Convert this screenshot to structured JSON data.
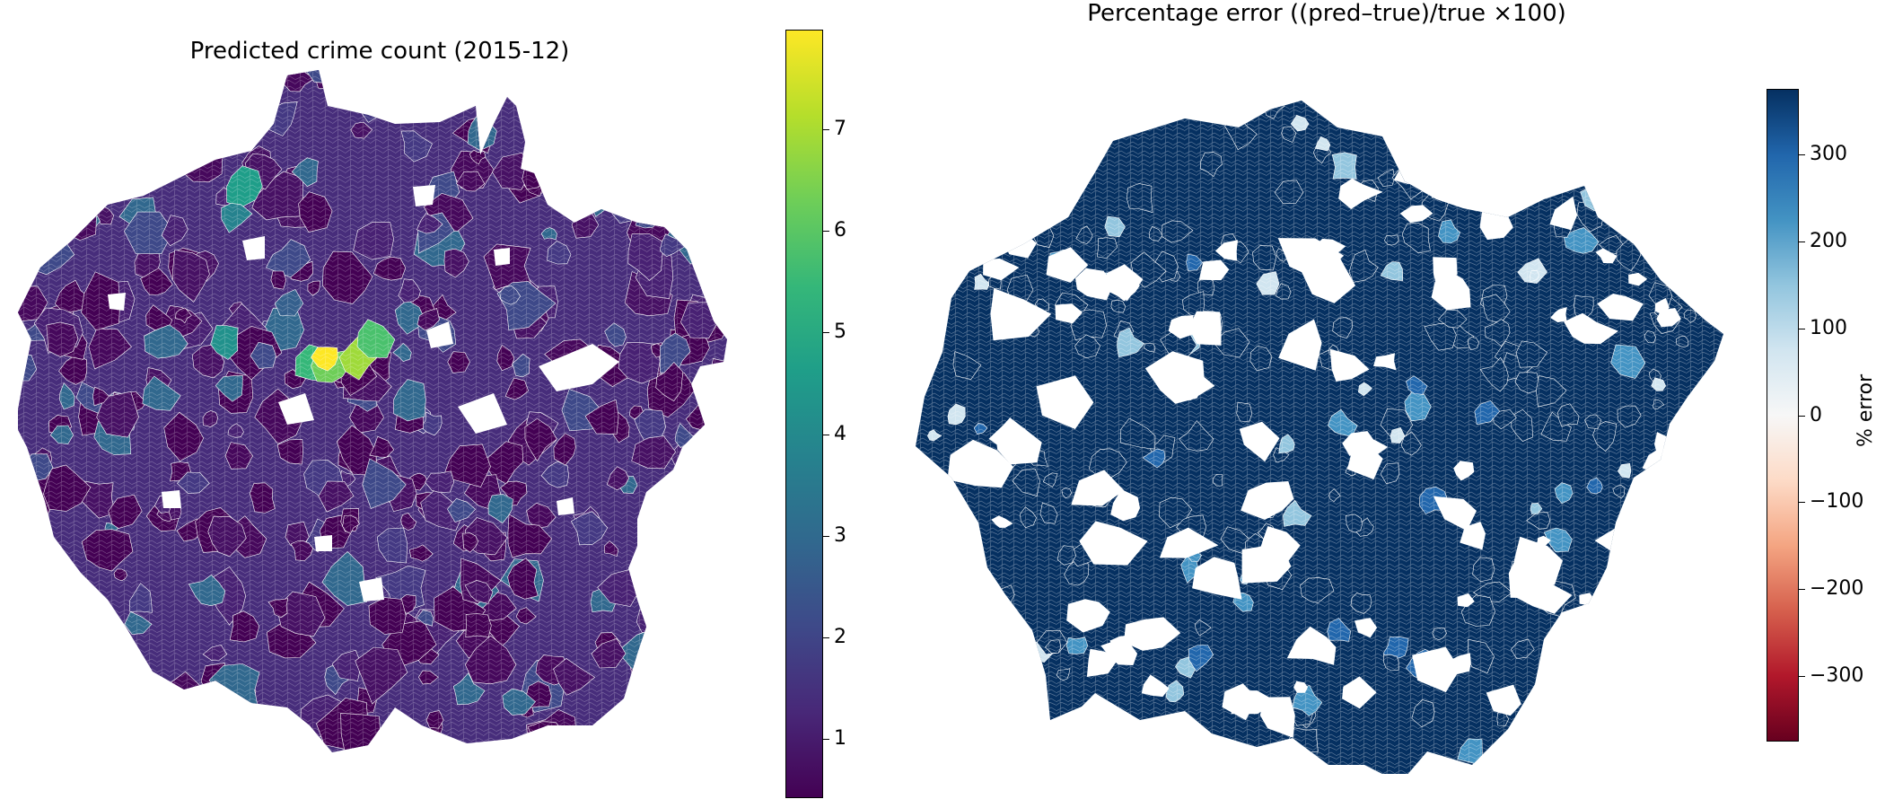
{
  "panels": [
    {
      "title": "Predicted crime count (2015-12)",
      "colormap": "viridis",
      "colorbar": {
        "min": 0.42,
        "max": 7.98,
        "ticks": [
          "1",
          "2",
          "3",
          "4",
          "5",
          "6",
          "7"
        ],
        "label": ""
      }
    },
    {
      "title": "Percentage error ((pred–true)/true ×100)",
      "colormap": "RdBu",
      "colorbar": {
        "min": -375,
        "max": 375,
        "ticks": [
          "300",
          "200",
          "100",
          "0",
          "−100",
          "−200",
          "−300"
        ],
        "label": "% error"
      }
    }
  ],
  "colors": {
    "viridis_low": "#440154",
    "viridis_mid": "#21918c",
    "viridis_high": "#fde725",
    "rdbu_low": "#67001f",
    "rdbu_mid": "#f7f7f7",
    "rdbu_high": "#053061"
  }
}
